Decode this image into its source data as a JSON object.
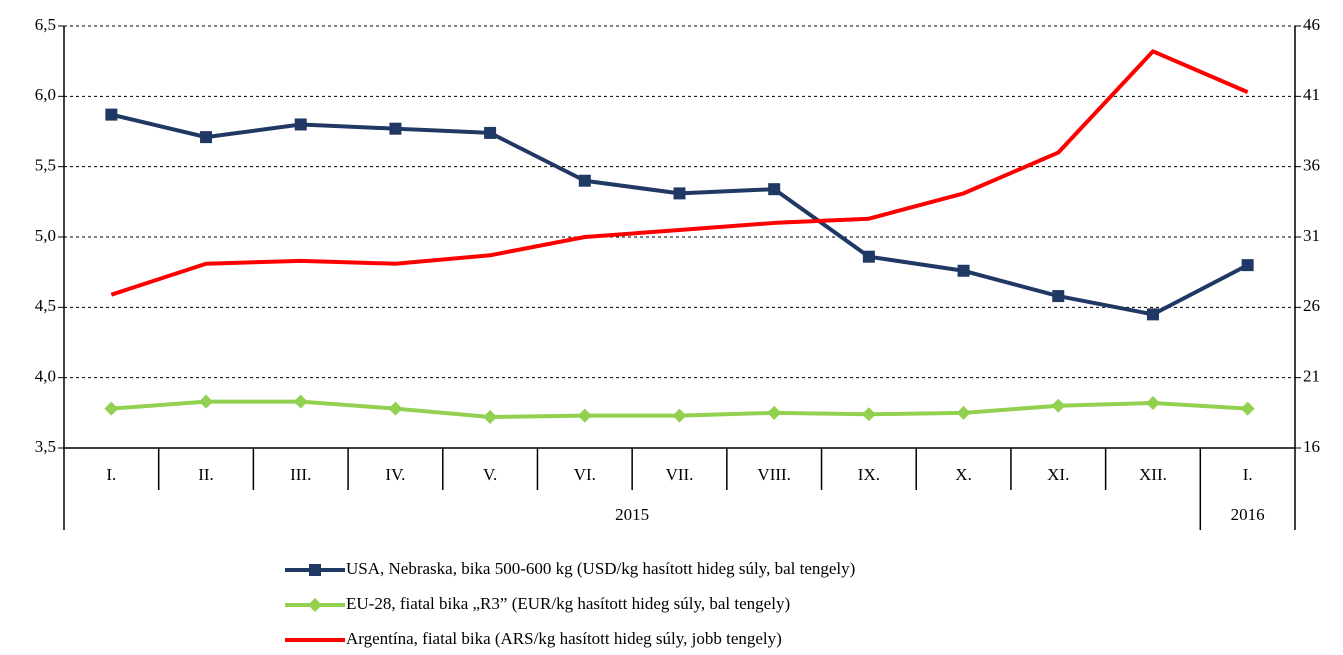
{
  "chart_data": {
    "type": "line",
    "category_groups": [
      {
        "name": "2015",
        "categories": [
          "I.",
          "II.",
          "III.",
          "IV.",
          "V.",
          "VI.",
          "VII.",
          "VIII.",
          "IX.",
          "X.",
          "XI.",
          "XII."
        ]
      },
      {
        "name": "2016",
        "categories": [
          "I."
        ]
      }
    ],
    "series": [
      {
        "name": "USA, Nebraska, bika 500-600 kg (USD/kg hasított hideg súly, bal tengely)",
        "color": "#203864",
        "marker": "square",
        "values": [
          5.87,
          5.71,
          5.8,
          5.77,
          5.74,
          5.4,
          5.31,
          5.34,
          4.86,
          4.76,
          4.58,
          4.45,
          4.8
        ]
      },
      {
        "name": "EU-28, fiatal bika „R3” (EUR/kg hasított hideg súly, bal tengely)",
        "color": "#92d050",
        "marker": "diamond",
        "values": [
          3.78,
          3.83,
          3.83,
          3.78,
          3.72,
          3.73,
          3.73,
          3.75,
          3.74,
          3.75,
          3.8,
          3.82,
          3.78
        ]
      },
      {
        "name": "Argentína, fiatal bika (ARS/kg hasított hideg súly, jobb tengely)",
        "color": "#ff0000",
        "axis": "y2",
        "values": [
          26.9,
          29.1,
          29.3,
          29.1,
          29.7,
          31.0,
          31.5,
          32.0,
          32.3,
          34.1,
          37.0,
          44.2,
          41.3
        ]
      }
    ],
    "ylim": [
      3.5,
      6.5
    ],
    "yticks": [
      {
        "value": 3.5,
        "label": "3,5"
      },
      {
        "value": 4.0,
        "label": "4,0"
      },
      {
        "value": 4.5,
        "label": "4,5"
      },
      {
        "value": 5.0,
        "label": "5,0"
      },
      {
        "value": 5.5,
        "label": "5,5"
      },
      {
        "value": 6.0,
        "label": "6,0"
      },
      {
        "value": 6.5,
        "label": "6,5"
      }
    ],
    "y2lim": [
      16,
      46
    ],
    "y2ticks": [
      16,
      21,
      26,
      31,
      36,
      41,
      46
    ],
    "grid": true
  }
}
